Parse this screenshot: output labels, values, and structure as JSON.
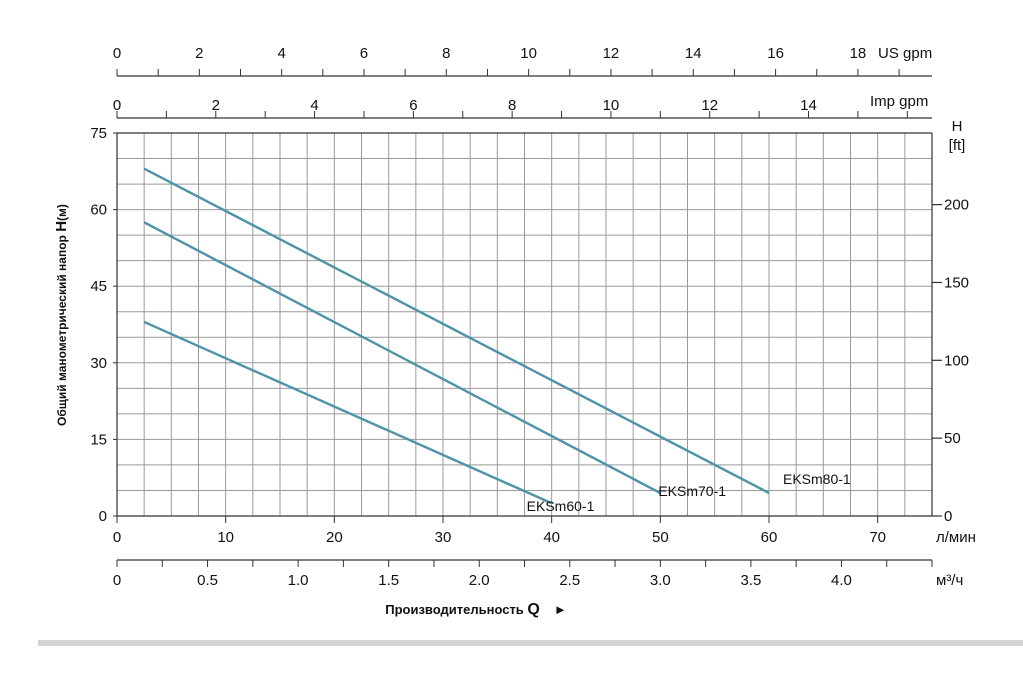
{
  "chart_data": {
    "type": "line",
    "ylabel_main": "Общий манометрический напор ",
    "ylabel_em": "H",
    "ylabel_unit": "(м)",
    "xlabel_main": "Производительность ",
    "xlabel_em": "Q",
    "xlabel_arrow": "►",
    "x_lpm": {
      "unit": "л/мин",
      "range": [
        0,
        75
      ],
      "ticks": [
        0,
        10,
        20,
        30,
        40,
        50,
        60,
        70
      ]
    },
    "x_m3h": {
      "unit": "м³/ч",
      "range": [
        0,
        4.5
      ],
      "ticks": [
        "0",
        "0.5",
        "1.0",
        "1.5",
        "2.0",
        "2.5",
        "3.0",
        "3.5",
        "4.0"
      ]
    },
    "x_usgpm": {
      "unit": "US gpm",
      "range": [
        0,
        19.8
      ],
      "ticks": [
        0,
        2,
        4,
        6,
        8,
        10,
        12,
        14,
        16,
        18
      ]
    },
    "x_impgpm": {
      "unit": "Imp gpm",
      "range": [
        0,
        16.5
      ],
      "ticks": [
        0,
        2,
        4,
        6,
        8,
        10,
        12,
        14
      ]
    },
    "y_m": {
      "unit": "",
      "range": [
        0,
        75
      ],
      "ticks": [
        0,
        15,
        30,
        45,
        60,
        75
      ]
    },
    "y_ft": {
      "unit_top": "H",
      "unit_bottom": "[ft]",
      "range": [
        0,
        246
      ],
      "ticks": [
        0,
        50,
        100,
        150,
        200
      ]
    },
    "grid": true,
    "series": [
      {
        "name": "EKSm60-1",
        "points": [
          [
            2.5,
            38
          ],
          [
            40,
            2.5
          ]
        ],
        "color": "#4f93a8"
      },
      {
        "name": "EKSm70-1",
        "points": [
          [
            2.5,
            57.5
          ],
          [
            50,
            4.5
          ]
        ],
        "color": "#4f93a8"
      },
      {
        "name": "EKSm80-1",
        "points": [
          [
            2.5,
            68
          ],
          [
            60,
            4.5
          ]
        ],
        "color": "#4f93a8"
      }
    ]
  }
}
